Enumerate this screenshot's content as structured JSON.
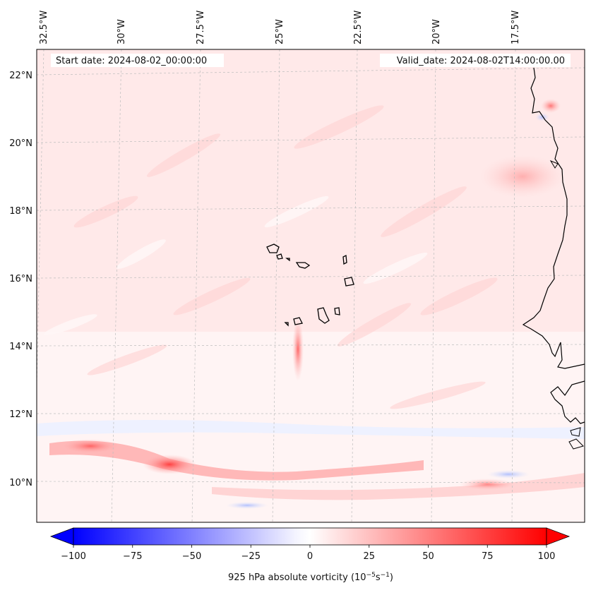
{
  "header": {
    "start_date": "Start date: 2024-08-02_00:00:00",
    "valid_date": "Valid_date: 2024-08-02T14:00:00.00"
  },
  "map": {
    "region": "Cape Verde / West African coast",
    "lon_labels": [
      "32.5°W",
      "30°W",
      "27.5°W",
      "25°W",
      "22.5°W",
      "20°W",
      "17.5°W"
    ],
    "lat_labels": [
      "22°N",
      "20°N",
      "18°N",
      "16°N",
      "14°N",
      "12°N",
      "10°N"
    ],
    "gridlines": true,
    "colors": {
      "coastline": "#000000",
      "grid": "#bdbdbd",
      "positive": "#ff0000",
      "negative": "#0000ff",
      "zero": "#ffffff"
    }
  },
  "colorbar": {
    "min": -100,
    "max": 100,
    "tick_labels": [
      "−100",
      "−75",
      "−50",
      "−25",
      "0",
      "25",
      "50",
      "75",
      "100"
    ],
    "label": "925 hPa absolute vorticity (10",
    "label_exp1": "−5",
    "label_mid": "s",
    "label_exp2": "−1",
    "label_end": ")",
    "extend": "both"
  }
}
